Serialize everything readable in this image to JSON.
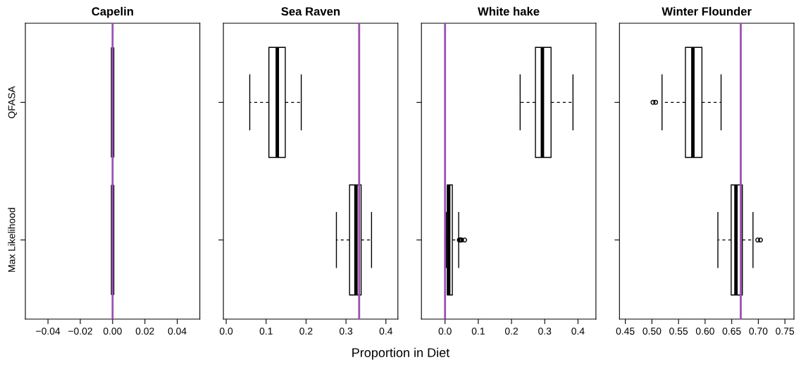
{
  "chart_data": [
    {
      "type": "box",
      "orientation": "horizontal",
      "title": "Capelin",
      "categories": [
        "QFASA",
        "Max Likelihood"
      ],
      "boxes": [
        {
          "low": 0,
          "q1": 0,
          "median": 0,
          "q3": 0,
          "high": 0
        },
        {
          "low": 0,
          "q1": 0,
          "median": 0,
          "q3": 0,
          "high": 0
        }
      ],
      "xlim": [
        -0.054,
        0.054
      ],
      "xticks": [
        {
          "value": -0.04,
          "label": "−0.04"
        },
        {
          "value": -0.02,
          "label": "−0.02"
        },
        {
          "value": 0,
          "label": "0.00"
        },
        {
          "value": 0.02,
          "label": "0.02"
        },
        {
          "value": 0.04,
          "label": "0.04"
        }
      ],
      "ref_lines": [
        {
          "axis": "x",
          "value": 0,
          "color": "#9b4fb5"
        }
      ]
    },
    {
      "type": "box",
      "orientation": "horizontal",
      "title": "Sea Raven",
      "xlabel": "Proportion in Diet",
      "categories": [
        null,
        null
      ],
      "boxes": [
        {
          "low": 0.059,
          "q1": 0.107,
          "median": 0.128,
          "q3": 0.148,
          "high": 0.188
        },
        {
          "low": 0.276,
          "q1": 0.309,
          "median": 0.325,
          "q3": 0.338,
          "high": 0.364
        }
      ],
      "xlim": [
        -0.007,
        0.43
      ],
      "xticks": [
        {
          "value": 0,
          "label": "0.0"
        },
        {
          "value": 0.1,
          "label": "0.1"
        },
        {
          "value": 0.2,
          "label": "0.2"
        },
        {
          "value": 0.3,
          "label": "0.3"
        },
        {
          "value": 0.4,
          "label": "0.4"
        }
      ],
      "ref_lines": [
        {
          "axis": "x",
          "value": 0.333,
          "color": "#9b4fb5"
        }
      ],
      "tick_labels": "x"
    },
    {
      "type": "box",
      "orientation": "horizontal",
      "title": "White hake",
      "categories": [
        null,
        null
      ],
      "boxes": [
        {
          "low": 0.226,
          "q1": 0.272,
          "median": 0.293,
          "q3": 0.319,
          "high": 0.385
        },
        {
          "low": 0.004,
          "q1": 0.007,
          "median": 0.011,
          "q3": 0.022,
          "high": 0.041,
          "outliers": [
            0.043,
            0.045,
            0.047,
            0.05,
            0.059
          ]
        }
      ],
      "xlim": [
        -0.071,
        0.454
      ],
      "xticks": [
        {
          "value": 0,
          "label": "0.0"
        },
        {
          "value": 0.1,
          "label": "0.1"
        },
        {
          "value": 0.2,
          "label": "0.2"
        },
        {
          "value": 0.3,
          "label": "0.3"
        },
        {
          "value": 0.4,
          "label": "0.4"
        }
      ],
      "ref_lines": [
        {
          "axis": "x",
          "value": 0,
          "color": "#9b4fb5"
        }
      ],
      "tick_labels": "x"
    },
    {
      "type": "box",
      "orientation": "horizontal",
      "title": "Winter Flounder",
      "categories": [
        null,
        null
      ],
      "boxes": [
        {
          "low": 0.519,
          "q1": 0.563,
          "median": 0.577,
          "q3": 0.594,
          "high": 0.63,
          "outliers": [
            0.502,
            0.507
          ]
        },
        {
          "low": 0.624,
          "q1": 0.649,
          "median": 0.658,
          "q3": 0.67,
          "high": 0.69,
          "outliers": [
            0.699,
            0.704
          ]
        }
      ],
      "xlim": [
        0.439,
        0.767
      ],
      "xticks": [
        {
          "value": 0.45,
          "label": "0.45"
        },
        {
          "value": 0.5,
          "label": "0.50"
        },
        {
          "value": 0.55,
          "label": "0.55"
        },
        {
          "value": 0.6,
          "label": "0.60"
        },
        {
          "value": 0.65,
          "label": "0.65"
        },
        {
          "value": 0.7,
          "label": "0.70"
        },
        {
          "value": 0.75,
          "label": "0.75"
        }
      ],
      "ref_lines": [
        {
          "axis": "x",
          "value": 0.667,
          "color": "#9b4fb5"
        }
      ],
      "tick_labels": "x"
    }
  ]
}
